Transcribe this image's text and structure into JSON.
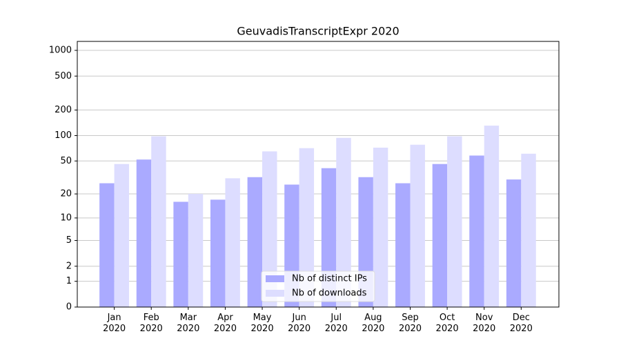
{
  "chart_data": {
    "type": "bar",
    "title": "GeuvadisTranscriptExpr 2020",
    "categories": [
      "Jan 2020",
      "Feb 2020",
      "Mar 2020",
      "Apr 2020",
      "May 2020",
      "Jun 2020",
      "Jul 2020",
      "Aug 2020",
      "Sep 2020",
      "Oct 2020",
      "Nov 2020",
      "Dec 2020"
    ],
    "series": [
      {
        "name": "Nb of distinct IPs",
        "color": "#aaaaff",
        "values": [
          27,
          52,
          16,
          17,
          32,
          26,
          41,
          32,
          27,
          46,
          58,
          30
        ]
      },
      {
        "name": "Nb of downloads",
        "color": "#ddddff",
        "values": [
          46,
          98,
          20,
          31,
          65,
          71,
          94,
          72,
          78,
          98,
          131,
          61
        ]
      }
    ],
    "yscale": "log1p",
    "ylim": [
      0,
      1273
    ],
    "yticks": [
      0,
      1,
      2,
      5,
      10,
      20,
      50,
      100,
      200,
      500,
      1000
    ],
    "grid": true,
    "legend": "lower center"
  }
}
